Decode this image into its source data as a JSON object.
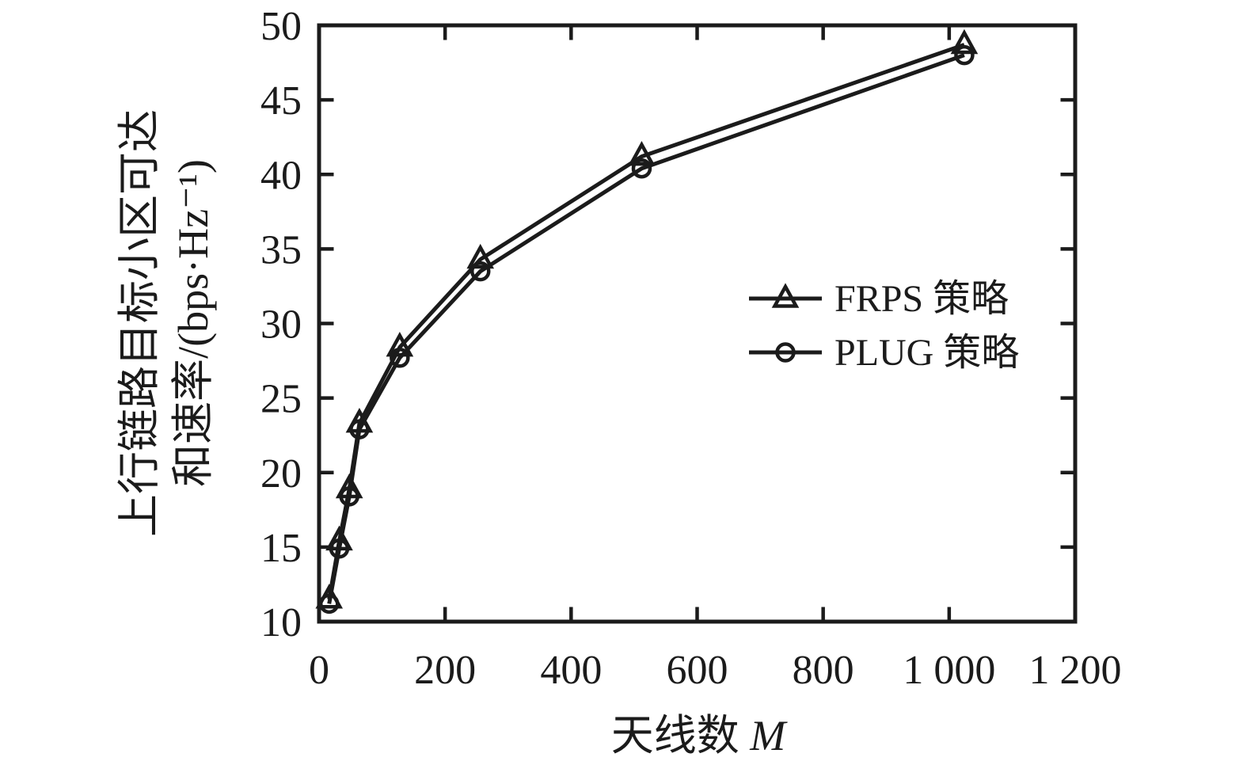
{
  "figure": {
    "background": "#ffffff"
  },
  "chart_data": {
    "type": "line",
    "title": "",
    "xlabel_text": "天线数",
    "xlabel_math": "M",
    "ylabel_line1": "上行链路目标小区可达",
    "ylabel_line2": "和速率/(bps·Hz⁻¹)",
    "xlim": [
      0,
      1200
    ],
    "ylim": [
      10,
      50
    ],
    "x_ticks": [
      0,
      200,
      400,
      600,
      800,
      1000,
      1200
    ],
    "x_tick_labels": [
      "0",
      "200",
      "400",
      "600",
      "800",
      "1 000",
      "1 200"
    ],
    "y_ticks": [
      10,
      15,
      20,
      25,
      30,
      35,
      40,
      45,
      50
    ],
    "y_tick_labels": [
      "10",
      "15",
      "20",
      "25",
      "30",
      "35",
      "40",
      "45",
      "50"
    ],
    "grid": false,
    "legend_position": "inside-right-middle",
    "x": [
      16,
      32,
      48,
      64,
      128,
      256,
      512,
      1024
    ],
    "series": [
      {
        "id": "frps",
        "name": "FRPS 策略",
        "marker": "triangle",
        "values": [
          11.5,
          15.4,
          18.9,
          23.3,
          28.4,
          34.3,
          41.2,
          48.7
        ]
      },
      {
        "id": "plug",
        "name": "PLUG 策略",
        "marker": "circle",
        "values": [
          11.2,
          14.9,
          18.4,
          22.9,
          27.7,
          33.5,
          40.4,
          48.0
        ]
      }
    ],
    "line_color": "#1b1b1b"
  }
}
